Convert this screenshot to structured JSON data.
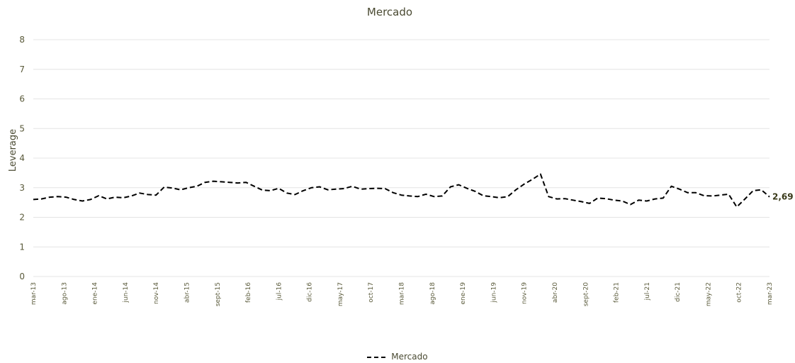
{
  "chart_data": {
    "type": "line",
    "title": "Mercado",
    "ylabel": "Leverage",
    "xlabel": "",
    "ylim": [
      0,
      8
    ],
    "yticks": [
      "0",
      "1",
      "2",
      "3",
      "4",
      "5",
      "6",
      "7",
      "8"
    ],
    "grid": true,
    "legend_position": "bottom",
    "x_tick_labels": [
      "mar-13",
      "ago-13",
      "ene-14",
      "jun-14",
      "nov-14",
      "abr-15",
      "sept-15",
      "feb-16",
      "jul-16",
      "dic-16",
      "may-17",
      "oct-17",
      "mar-18",
      "ago-18",
      "ene-19",
      "jun-19",
      "nov-19",
      "abr-20",
      "sept-20",
      "feb-21",
      "jul-21",
      "dic-21",
      "may-22",
      "oct-22",
      "mar-23"
    ],
    "series": [
      {
        "name": "Mercado",
        "color": "#000000",
        "style": "dashed",
        "values": [
          2.6,
          2.62,
          2.68,
          2.7,
          2.68,
          2.6,
          2.55,
          2.6,
          2.73,
          2.62,
          2.68,
          2.66,
          2.72,
          2.82,
          2.77,
          2.75,
          3.02,
          2.99,
          2.93,
          3.0,
          3.05,
          3.18,
          3.22,
          3.2,
          3.18,
          3.16,
          3.18,
          3.05,
          2.92,
          2.9,
          2.98,
          2.82,
          2.77,
          2.9,
          3.0,
          3.03,
          2.93,
          2.95,
          2.97,
          3.05,
          2.95,
          2.97,
          2.98,
          2.97,
          2.83,
          2.75,
          2.72,
          2.7,
          2.78,
          2.7,
          2.72,
          3.03,
          3.1,
          2.98,
          2.88,
          2.73,
          2.7,
          2.66,
          2.7,
          2.93,
          3.12,
          3.28,
          3.46,
          2.7,
          2.62,
          2.63,
          2.58,
          2.53,
          2.47,
          2.65,
          2.63,
          2.58,
          2.55,
          2.43,
          2.58,
          2.55,
          2.62,
          2.65,
          3.05,
          2.95,
          2.83,
          2.83,
          2.73,
          2.72,
          2.75,
          2.78,
          2.35,
          2.62,
          2.9,
          2.93,
          2.69
        ]
      }
    ],
    "last_value_label": "2,69"
  }
}
